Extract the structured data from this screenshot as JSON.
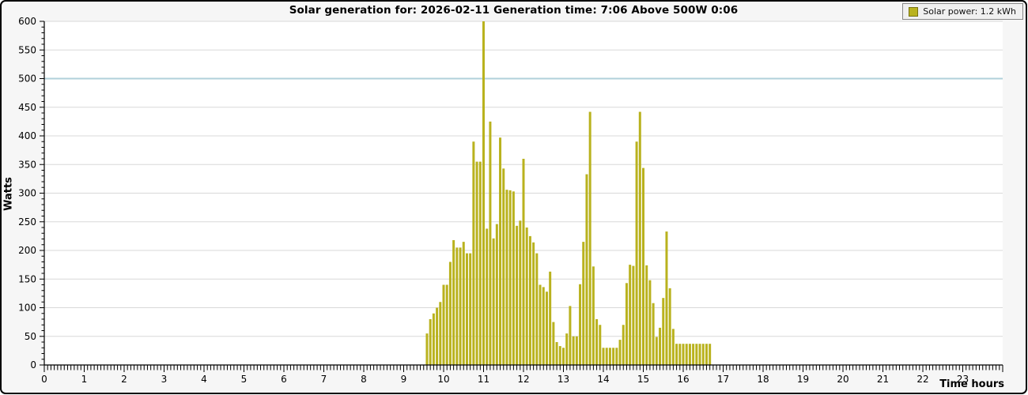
{
  "chart_data": {
    "type": "bar",
    "title": "Solar generation for: 2026-02-11 Generation time: 7:06 Above 500W 0:06",
    "legend": {
      "position": "top-right",
      "label": "Solar power: 1.2 kWh"
    },
    "xlabel": "Time hours",
    "ylabel": "Watts",
    "xlim": [
      0,
      24
    ],
    "ylim": [
      0,
      600
    ],
    "x_tick_labels": [
      0,
      1,
      2,
      3,
      4,
      5,
      6,
      7,
      8,
      9,
      10,
      11,
      12,
      13,
      14,
      15,
      16,
      17,
      18,
      19,
      20,
      21,
      22,
      23
    ],
    "x_minor_ticks_per_hour": 12,
    "y_tick_labels": [
      0,
      50,
      100,
      150,
      200,
      250,
      300,
      350,
      400,
      450,
      500,
      550,
      600
    ],
    "y_minor_step": 10,
    "grid": "horizontal-major-only",
    "threshold_line": {
      "value": 500
    },
    "interval_minutes": 5,
    "colors": {
      "bar": "#b9b21e",
      "bar_border": "#76710f",
      "grid": "#d8d8d8",
      "threshold": "#b0d0da",
      "axis": "#000000",
      "plot_bg": "#ffffff",
      "canvas_bg": "#f6f6f6",
      "legend_bg": "#f0f0f0"
    },
    "series_name": "Solar power",
    "points": [
      [
        "09:35",
        55
      ],
      [
        "09:40",
        80
      ],
      [
        "09:45",
        90
      ],
      [
        "09:50",
        100
      ],
      [
        "09:55",
        110
      ],
      [
        "10:00",
        140
      ],
      [
        "10:05",
        140
      ],
      [
        "10:10",
        180
      ],
      [
        "10:15",
        218
      ],
      [
        "10:20",
        205
      ],
      [
        "10:25",
        205
      ],
      [
        "10:30",
        215
      ],
      [
        "10:35",
        195
      ],
      [
        "10:40",
        195
      ],
      [
        "10:45",
        390
      ],
      [
        "10:50",
        355
      ],
      [
        "10:55",
        355
      ],
      [
        "11:00",
        600
      ],
      [
        "11:05",
        238
      ],
      [
        "11:10",
        425
      ],
      [
        "11:15",
        221
      ],
      [
        "11:20",
        246
      ],
      [
        "11:25",
        397
      ],
      [
        "11:30",
        343
      ],
      [
        "11:35",
        306
      ],
      [
        "11:40",
        305
      ],
      [
        "11:45",
        303
      ],
      [
        "11:50",
        243
      ],
      [
        "11:55",
        252
      ],
      [
        "12:00",
        360
      ],
      [
        "12:05",
        240
      ],
      [
        "12:10",
        225
      ],
      [
        "12:15",
        214
      ],
      [
        "12:20",
        195
      ],
      [
        "12:25",
        140
      ],
      [
        "12:30",
        136
      ],
      [
        "12:35",
        128
      ],
      [
        "12:40",
        163
      ],
      [
        "12:45",
        75
      ],
      [
        "12:50",
        40
      ],
      [
        "12:55",
        33
      ],
      [
        "13:00",
        30
      ],
      [
        "13:05",
        55
      ],
      [
        "13:10",
        103
      ],
      [
        "13:15",
        50
      ],
      [
        "13:20",
        50
      ],
      [
        "13:25",
        141
      ],
      [
        "13:30",
        215
      ],
      [
        "13:35",
        333
      ],
      [
        "13:40",
        442
      ],
      [
        "13:45",
        172
      ],
      [
        "13:50",
        80
      ],
      [
        "13:55",
        70
      ],
      [
        "14:00",
        30
      ],
      [
        "14:05",
        30
      ],
      [
        "14:10",
        30
      ],
      [
        "14:15",
        30
      ],
      [
        "14:20",
        30
      ],
      [
        "14:25",
        44
      ],
      [
        "14:30",
        70
      ],
      [
        "14:35",
        143
      ],
      [
        "14:40",
        175
      ],
      [
        "14:45",
        173
      ],
      [
        "14:50",
        390
      ],
      [
        "14:55",
        442
      ],
      [
        "15:00",
        344
      ],
      [
        "15:05",
        174
      ],
      [
        "15:10",
        148
      ],
      [
        "15:15",
        108
      ],
      [
        "15:20",
        49
      ],
      [
        "15:25",
        65
      ],
      [
        "15:30",
        117
      ],
      [
        "15:35",
        233
      ],
      [
        "15:40",
        134
      ],
      [
        "15:45",
        63
      ],
      [
        "15:50",
        37
      ],
      [
        "15:55",
        37
      ],
      [
        "16:00",
        37
      ],
      [
        "16:05",
        37
      ],
      [
        "16:10",
        37
      ],
      [
        "16:15",
        37
      ],
      [
        "16:20",
        37
      ],
      [
        "16:25",
        37
      ],
      [
        "16:30",
        37
      ],
      [
        "16:35",
        37
      ],
      [
        "16:40",
        37
      ]
    ]
  }
}
